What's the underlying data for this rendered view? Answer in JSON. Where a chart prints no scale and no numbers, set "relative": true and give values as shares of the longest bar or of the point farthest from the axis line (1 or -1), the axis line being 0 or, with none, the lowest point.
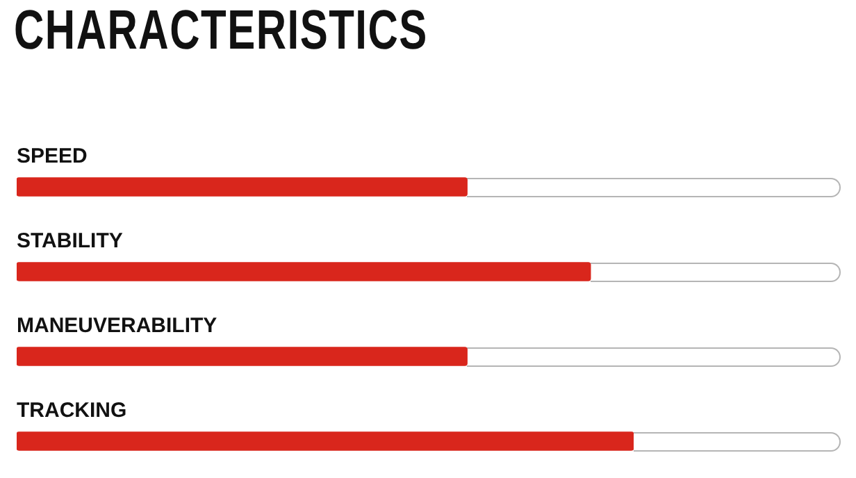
{
  "chart_data": {
    "type": "bar",
    "orientation": "horizontal",
    "relative": true,
    "title": "CHARACTERISTICS",
    "categories": [
      "SPEED",
      "STABILITY",
      "MANEUVERABILITY",
      "TRACKING"
    ],
    "values": [
      0.73,
      0.93,
      0.73,
      1
    ],
    "color": "#d9261c",
    "legend": false,
    "tick_labels": false
  }
}
